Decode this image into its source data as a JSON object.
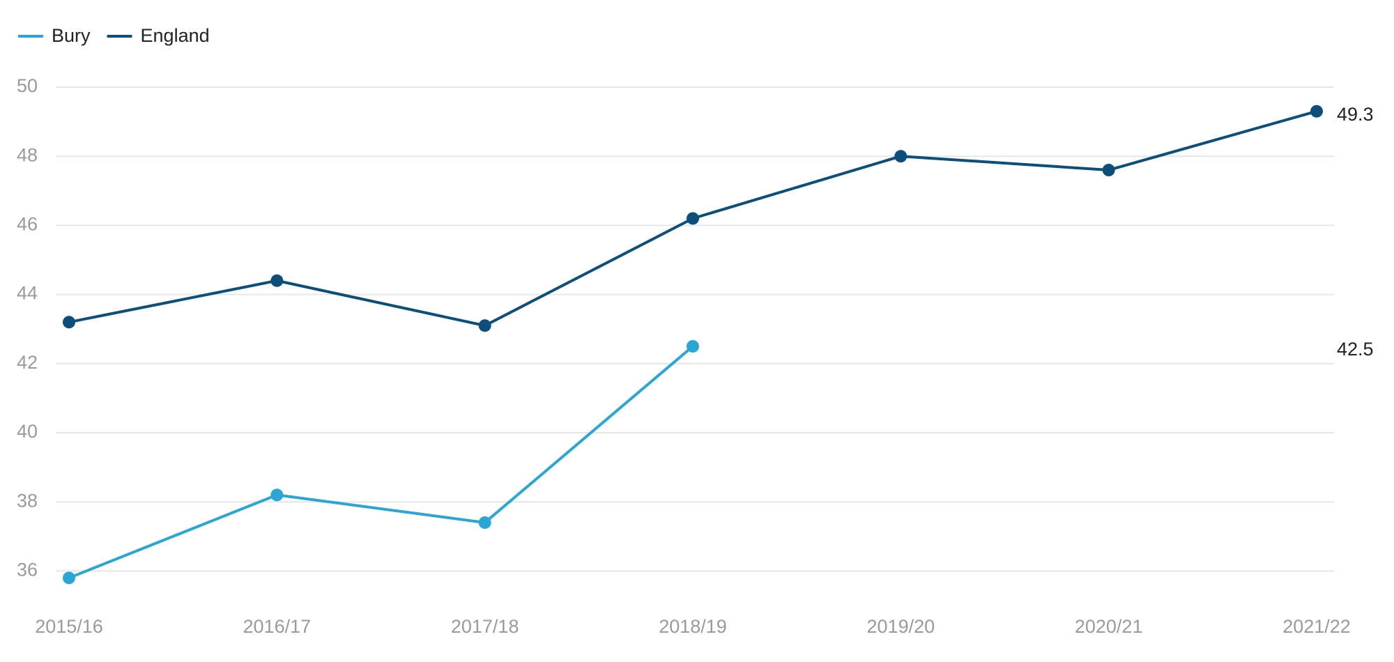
{
  "chart_data": {
    "type": "line",
    "categories": [
      "2015/16",
      "2016/17",
      "2017/18",
      "2018/19",
      "2019/20",
      "2020/21",
      "2021/22"
    ],
    "series": [
      {
        "name": "Bury",
        "color": "#2ba6d4",
        "values": [
          35.8,
          38.2,
          37.4,
          42.5,
          null,
          null,
          null
        ]
      },
      {
        "name": "England",
        "color": "#0c4f7a",
        "values": [
          43.2,
          44.4,
          43.1,
          46.2,
          48.0,
          47.6,
          49.3
        ]
      }
    ],
    "ylim": [
      35,
      50
    ],
    "yticks": [
      36,
      38,
      40,
      42,
      44,
      46,
      48,
      50
    ],
    "grid": true,
    "legend": "top-left"
  }
}
